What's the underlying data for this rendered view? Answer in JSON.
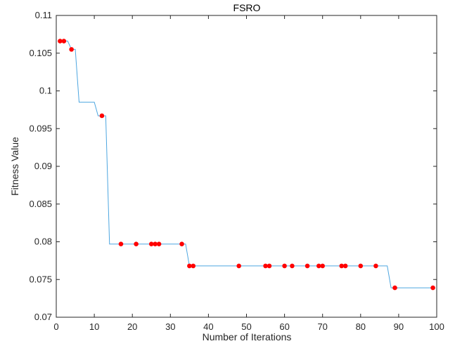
{
  "chart_data": {
    "type": "line",
    "title": "FSRO",
    "xlabel": "Number of Iterations",
    "ylabel": "Fitness Value",
    "xlim": [
      0,
      100
    ],
    "ylim": [
      0.07,
      0.11
    ],
    "xticks": [
      0,
      10,
      20,
      30,
      40,
      50,
      60,
      70,
      80,
      90,
      100
    ],
    "yticks": [
      0.07,
      0.075,
      0.08,
      0.085,
      0.09,
      0.095,
      0.1,
      0.105,
      0.11
    ],
    "xtick_labels": [
      "0",
      "10",
      "20",
      "30",
      "40",
      "50",
      "60",
      "70",
      "80",
      "90",
      "100"
    ],
    "ytick_labels": [
      "0.07",
      "0.075",
      "0.08",
      "0.085",
      "0.09",
      "0.095",
      "0.1",
      "0.105",
      "0.11"
    ],
    "grid": false,
    "line": {
      "color": "#4da6e0",
      "x": [
        1,
        3,
        4,
        5,
        6,
        10,
        11,
        12,
        13,
        14,
        33,
        34,
        35,
        87,
        88,
        99
      ],
      "y": [
        0.1066,
        0.1066,
        0.1055,
        0.1055,
        0.0985,
        0.0985,
        0.0967,
        0.0967,
        0.0967,
        0.0797,
        0.0797,
        0.0797,
        0.0768,
        0.0768,
        0.0739,
        0.0739
      ]
    },
    "markers": {
      "color": "#ff0000",
      "x": [
        1,
        2,
        4,
        12,
        17,
        21,
        25,
        26,
        27,
        33,
        35,
        36,
        48,
        55,
        56,
        60,
        62,
        66,
        69,
        70,
        75,
        76,
        80,
        84,
        89,
        99
      ],
      "y": [
        0.1066,
        0.1066,
        0.1055,
        0.0967,
        0.0797,
        0.0797,
        0.0797,
        0.0797,
        0.0797,
        0.0797,
        0.0768,
        0.0768,
        0.0768,
        0.0768,
        0.0768,
        0.0768,
        0.0768,
        0.0768,
        0.0768,
        0.0768,
        0.0768,
        0.0768,
        0.0768,
        0.0768,
        0.0739,
        0.0739
      ]
    }
  }
}
